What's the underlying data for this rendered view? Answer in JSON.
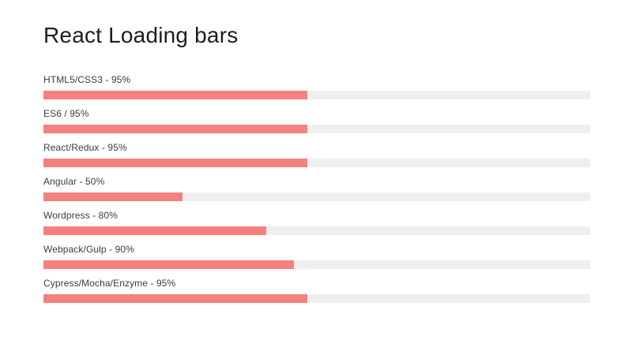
{
  "page": {
    "title": "React Loading bars"
  },
  "colors": {
    "bar_fill": "#f5807e",
    "bar_track": "#efefef",
    "title_text": "#1d1d1d",
    "label_text": "#3c3c3c",
    "background": "#ffffff"
  },
  "skills": [
    {
      "label": "HTML5/CSS3 - 95%",
      "percent": 95
    },
    {
      "label": "ES6 / 95%",
      "percent": 95
    },
    {
      "label": "React/Redux - 95%",
      "percent": 95
    },
    {
      "label": "Angular - 50%",
      "percent": 50
    },
    {
      "label": "Wordpress - 80%",
      "percent": 80
    },
    {
      "label": "Webpack/Gulp - 90%",
      "percent": 90
    },
    {
      "label": "Cypress/Mocha/Enzyme - 95%",
      "percent": 95
    }
  ],
  "chart_data": {
    "type": "bar",
    "orientation": "horizontal",
    "title": "React Loading bars",
    "categories": [
      "HTML5/CSS3",
      "ES6",
      "React/Redux",
      "Angular",
      "Wordpress",
      "Webpack/Gulp",
      "Cypress/Mocha/Enzyme"
    ],
    "values": [
      95,
      95,
      95,
      50,
      80,
      90,
      95
    ],
    "value_unit": "%",
    "xlim": [
      0,
      100
    ],
    "grid": false,
    "legend": false,
    "data_labels": "shown inline with category label above each bar"
  }
}
